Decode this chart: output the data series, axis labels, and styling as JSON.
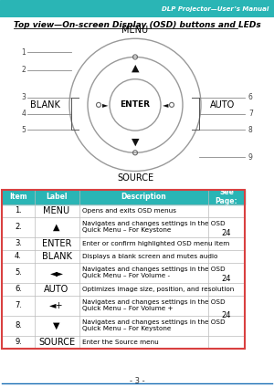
{
  "title_right": "DLP Projector—User’s Manual",
  "title_main": "Top view—On-screen Display (OSD) buttons and LEDs",
  "header_color": "#2ab5b5",
  "border_color": "#d94040",
  "table_headers": [
    "Item",
    "Label",
    "Description",
    "See\nPage:"
  ],
  "rows": [
    {
      "item": "1.",
      "label": "MENU",
      "desc": "Opens and exits OSD menus",
      "page": ""
    },
    {
      "item": "2.",
      "label": "▲",
      "desc": "Navigates and changes settings in the OSD\nQuick Menu – For Keystone",
      "page": "24"
    },
    {
      "item": "3.",
      "label": "ENTER",
      "desc": "Enter or confirm highlighted OSD menu item",
      "page": ""
    },
    {
      "item": "4.",
      "label": "BLANK",
      "desc": "Displays a blank screen and mutes audio",
      "page": ""
    },
    {
      "item": "5.",
      "label": "◄►",
      "desc": "Navigates and changes settings in the OSD\nQuick Menu – For Volume -",
      "page": "24"
    },
    {
      "item": "6.",
      "label": "AUTO",
      "desc": "Optimizes image size, position, and resolution",
      "page": ""
    },
    {
      "item": "7.",
      "label": "◄+",
      "desc": "Navigates and changes settings in the OSD\nQuick Menu – For Volume +",
      "page": "24"
    },
    {
      "item": "8.",
      "label": "▼",
      "desc": "Navigates and changes settings in the OSD\nQuick Menu – For Keystone",
      "page": ""
    },
    {
      "item": "9.",
      "label": "SOURCE",
      "desc": "Enter the Source menu",
      "page": ""
    }
  ],
  "footer_text": "- 3 -",
  "footer_color": "#1a6fb5",
  "teal_line_color": "#2ab5b5",
  "circle_color": "#999999",
  "line_color": "#888888",
  "bracket_color": "#555555"
}
